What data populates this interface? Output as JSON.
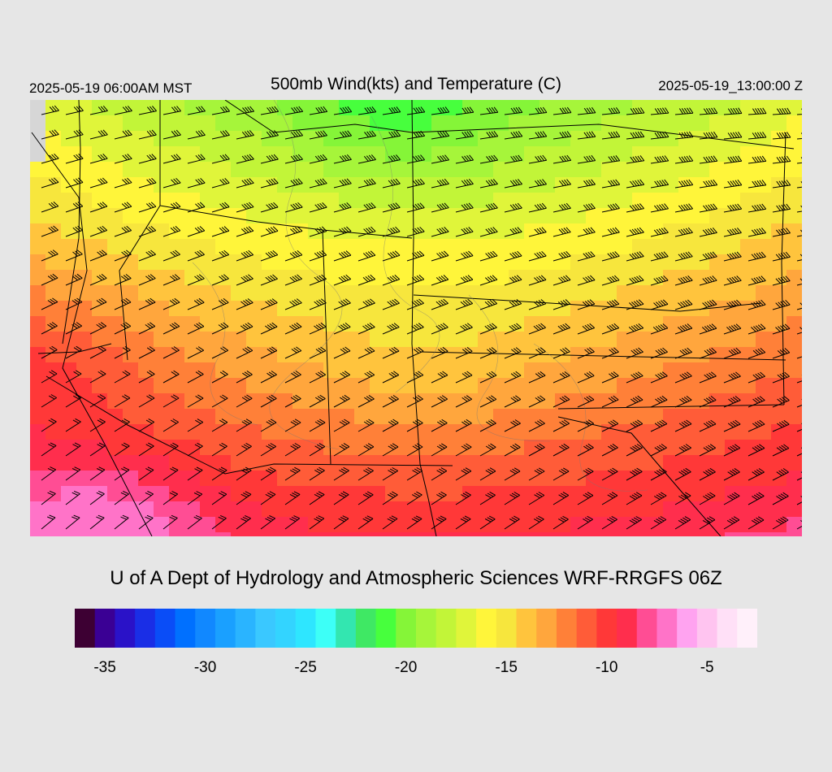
{
  "header": {
    "local_time": "2025-05-19 06:00AM MST",
    "title": "500mb Wind(kts) and Temperature (C)",
    "valid_time": "2025-05-19_13:00:00 Z"
  },
  "credit": "U of A Dept of Hydrology and Atmospheric Sciences WRF-RRGFS 06Z",
  "colorbar": {
    "colors": [
      "#3d0033",
      "#3a0094",
      "#2a12c8",
      "#1a2ee6",
      "#0a4df7",
      "#0070ff",
      "#1188ff",
      "#1aa0ff",
      "#2ab4ff",
      "#3ac8ff",
      "#33d4ff",
      "#2ee6ff",
      "#3dfff7",
      "#33e6b0",
      "#3fe864",
      "#47ff3d",
      "#85f538",
      "#a6f53a",
      "#c2f538",
      "#e0f53a",
      "#fff53a",
      "#f7e63d",
      "#ffc43d",
      "#ffa63d",
      "#ff8038",
      "#ff5c38",
      "#ff3838",
      "#ff2e4d",
      "#ff4d94",
      "#ff73c8",
      "#ffa3f0",
      "#ffc4f0",
      "#ffe0f7",
      "#fff0fa"
    ],
    "tick_labels": [
      "-35",
      "-30",
      "-25",
      "-20",
      "-15",
      "-10",
      "-5"
    ],
    "tick_values": [
      -35,
      -30,
      -25,
      -20,
      -15,
      -10,
      -5
    ],
    "min": -36,
    "max": -1
  },
  "map": {
    "temperature_pattern": "cold core north-central near -20 C, warming southward to about -6 C in the southwest",
    "barb_pattern": "southwesterly to westerly flow, 20-50 kt"
  }
}
